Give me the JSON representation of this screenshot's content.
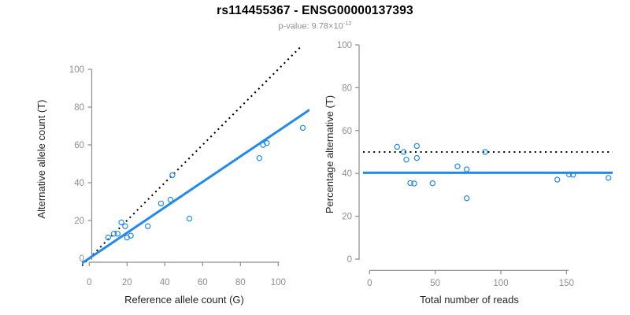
{
  "header": {
    "title": "rs114455367 - ENSG00000137393",
    "pvalue_label": "p-value: ",
    "pvalue_base": "9.78×10",
    "pvalue_exponent": "-12"
  },
  "colors": {
    "accent_blue": "#2589EC",
    "dotted_black": "#000000",
    "axis_gray": "#8d8d8d",
    "tick_text_gray": "#8d8d8d",
    "axis_title_color": "#262626",
    "subtitle_gray": "#8f8f8f"
  },
  "chart_data": [
    {
      "type": "scatter",
      "name": "allele-counts-panel",
      "xlabel": "Reference allele count (G)",
      "ylabel": "Alternative allele count (T)",
      "xticks": [
        0,
        20,
        40,
        60,
        80,
        100
      ],
      "yticks": [
        0,
        20,
        40,
        60,
        80,
        100
      ],
      "xlim": [
        0,
        115
      ],
      "ylim": [
        0,
        112
      ],
      "grid": false,
      "legend": "none",
      "points": [
        [
          10,
          11
        ],
        [
          13,
          13
        ],
        [
          15,
          13
        ],
        [
          17,
          19
        ],
        [
          19,
          17
        ],
        [
          20,
          11
        ],
        [
          22,
          12
        ],
        [
          31,
          17
        ],
        [
          38,
          29
        ],
        [
          43,
          31
        ],
        [
          44,
          44
        ],
        [
          53,
          21
        ],
        [
          90,
          53
        ],
        [
          92,
          60
        ],
        [
          94,
          61
        ],
        [
          113,
          69
        ]
      ],
      "lines": [
        {
          "name": "identity-line",
          "style": "dotted",
          "color": "#000000",
          "kind": "ab",
          "intercept": 0,
          "slope": 1
        },
        {
          "name": "fit-line",
          "style": "solid",
          "color": "#2589EC",
          "kind": "ab",
          "intercept": 0,
          "slope": 0.674
        }
      ]
    },
    {
      "type": "scatter",
      "name": "percentage-panel",
      "xlabel": "Total number of reads",
      "ylabel": "Percentage alternative (T)",
      "xticks": [
        0,
        50,
        100,
        150
      ],
      "yticks": [
        0,
        20,
        40,
        60,
        80,
        100
      ],
      "xlim": [
        0,
        190
      ],
      "ylim": [
        0,
        100
      ],
      "grid": false,
      "legend": "none",
      "points": [
        [
          21,
          52.4
        ],
        [
          26,
          50.0
        ],
        [
          28,
          46.4
        ],
        [
          31,
          35.5
        ],
        [
          34,
          35.3
        ],
        [
          36,
          52.8
        ],
        [
          36,
          47.2
        ],
        [
          48,
          35.4
        ],
        [
          67,
          43.3
        ],
        [
          74,
          41.9
        ],
        [
          74,
          28.4
        ],
        [
          88,
          50.0
        ],
        [
          143,
          37.1
        ],
        [
          152,
          39.5
        ],
        [
          155,
          39.4
        ],
        [
          182,
          37.9
        ]
      ],
      "lines": [
        {
          "name": "expected-50pct-line",
          "style": "dotted",
          "color": "#000000",
          "kind": "h",
          "y": 50
        },
        {
          "name": "fit-line",
          "style": "solid",
          "color": "#2589EC",
          "kind": "h",
          "y": 40.3
        }
      ]
    }
  ]
}
